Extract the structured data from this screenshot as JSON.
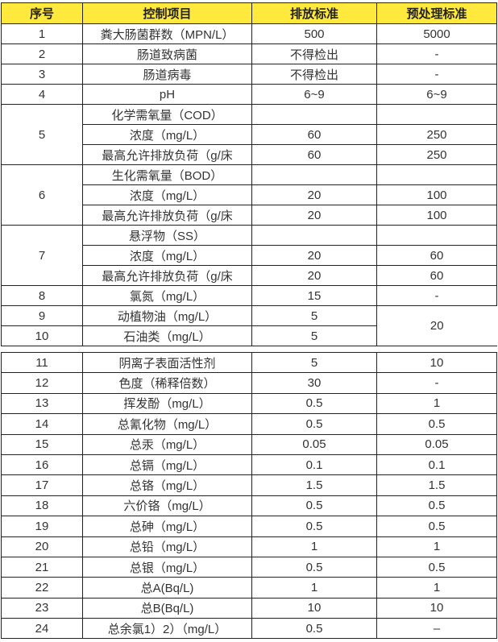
{
  "header": {
    "seq": "序号",
    "item": "控制项目",
    "discharge": "排放标准",
    "pretreatment": "预处理标准"
  },
  "table1": [
    {
      "seq": "1",
      "rows": [
        {
          "item": "粪大肠菌群数（MPN/L）",
          "discharge": "500",
          "pretreatment": "5000"
        }
      ]
    },
    {
      "seq": "2",
      "rows": [
        {
          "item": "肠道致病菌",
          "discharge": "不得检出",
          "pretreatment": "-"
        }
      ]
    },
    {
      "seq": "3",
      "rows": [
        {
          "item": "肠道病毒",
          "discharge": "不得检出",
          "pretreatment": "-"
        }
      ]
    },
    {
      "seq": "4",
      "rows": [
        {
          "item": "pH",
          "discharge": "6~9",
          "pretreatment": "6~9"
        }
      ]
    },
    {
      "seq": "5",
      "rows": [
        {
          "item": "化学需氧量（COD）",
          "discharge": "",
          "pretreatment": ""
        },
        {
          "item": "浓度（mg/L）",
          "discharge": "60",
          "pretreatment": "250"
        },
        {
          "item": "最高允许排放负荷（g/床",
          "discharge": "60",
          "pretreatment": "250"
        }
      ]
    },
    {
      "seq": "6",
      "rows": [
        {
          "item": "生化需氧量（BOD）",
          "discharge": "",
          "pretreatment": ""
        },
        {
          "item": "浓度（mg/L）",
          "discharge": "20",
          "pretreatment": "100"
        },
        {
          "item": "最高允许排放负荷（g/床",
          "discharge": "20",
          "pretreatment": "100"
        }
      ]
    },
    {
      "seq": "7",
      "rows": [
        {
          "item": "悬浮物（SS）",
          "discharge": "",
          "pretreatment": ""
        },
        {
          "item": "浓度（mg/L）",
          "discharge": "20",
          "pretreatment": "60"
        },
        {
          "item": "最高允许排放负荷（g/床",
          "discharge": "20",
          "pretreatment": "60"
        }
      ]
    },
    {
      "seq": "8",
      "rows": [
        {
          "item": "氯氮（mg/L）",
          "discharge": "15",
          "pretreatment": "-"
        }
      ]
    }
  ],
  "merged": {
    "rows": [
      {
        "seq": "9",
        "item": "动植物油（mg/L）",
        "discharge": "5"
      },
      {
        "seq": "10",
        "item": "石油类（mg/L）",
        "discharge": "5"
      }
    ],
    "pretreatment": "20"
  },
  "table2": [
    {
      "seq": "11",
      "item": "阴离子表面活性剂",
      "discharge": "5",
      "pretreatment": "10"
    },
    {
      "seq": "12",
      "item": "色度（稀释倍数）",
      "discharge": "30",
      "pretreatment": "-"
    },
    {
      "seq": "13",
      "item": "挥发酚（mg/L）",
      "discharge": "0.5",
      "pretreatment": "1"
    },
    {
      "seq": "14",
      "item": "总氰化物（mg/L）",
      "discharge": "0.5",
      "pretreatment": "0.5"
    },
    {
      "seq": "15",
      "item": "总汞（mg/L）",
      "discharge": "0.05",
      "pretreatment": "0.05"
    },
    {
      "seq": "16",
      "item": "总镉（mg/L）",
      "discharge": "0.1",
      "pretreatment": "0.1"
    },
    {
      "seq": "17",
      "item": "总铬（mg/L）",
      "discharge": "1.5",
      "pretreatment": "1.5"
    },
    {
      "seq": "18",
      "item": "六价铬（mg/L）",
      "discharge": "0.5",
      "pretreatment": "0.5"
    },
    {
      "seq": "19",
      "item": "总砷（mg/L）",
      "discharge": "0.5",
      "pretreatment": "0.5"
    },
    {
      "seq": "20",
      "item": "总铅（mg/L）",
      "discharge": "1",
      "pretreatment": "1"
    },
    {
      "seq": "21",
      "item": "总银（mg/L）",
      "discharge": "0.5",
      "pretreatment": "0.5"
    },
    {
      "seq": "22",
      "item": "总A(Bq/L)",
      "discharge": "1",
      "pretreatment": "1"
    },
    {
      "seq": "23",
      "item": "总B(Bq/L)",
      "discharge": "10",
      "pretreatment": "10"
    },
    {
      "seq": "24",
      "item": "总余氯1）2）（mg/L）",
      "discharge": "0.5",
      "pretreatment": "–"
    }
  ]
}
